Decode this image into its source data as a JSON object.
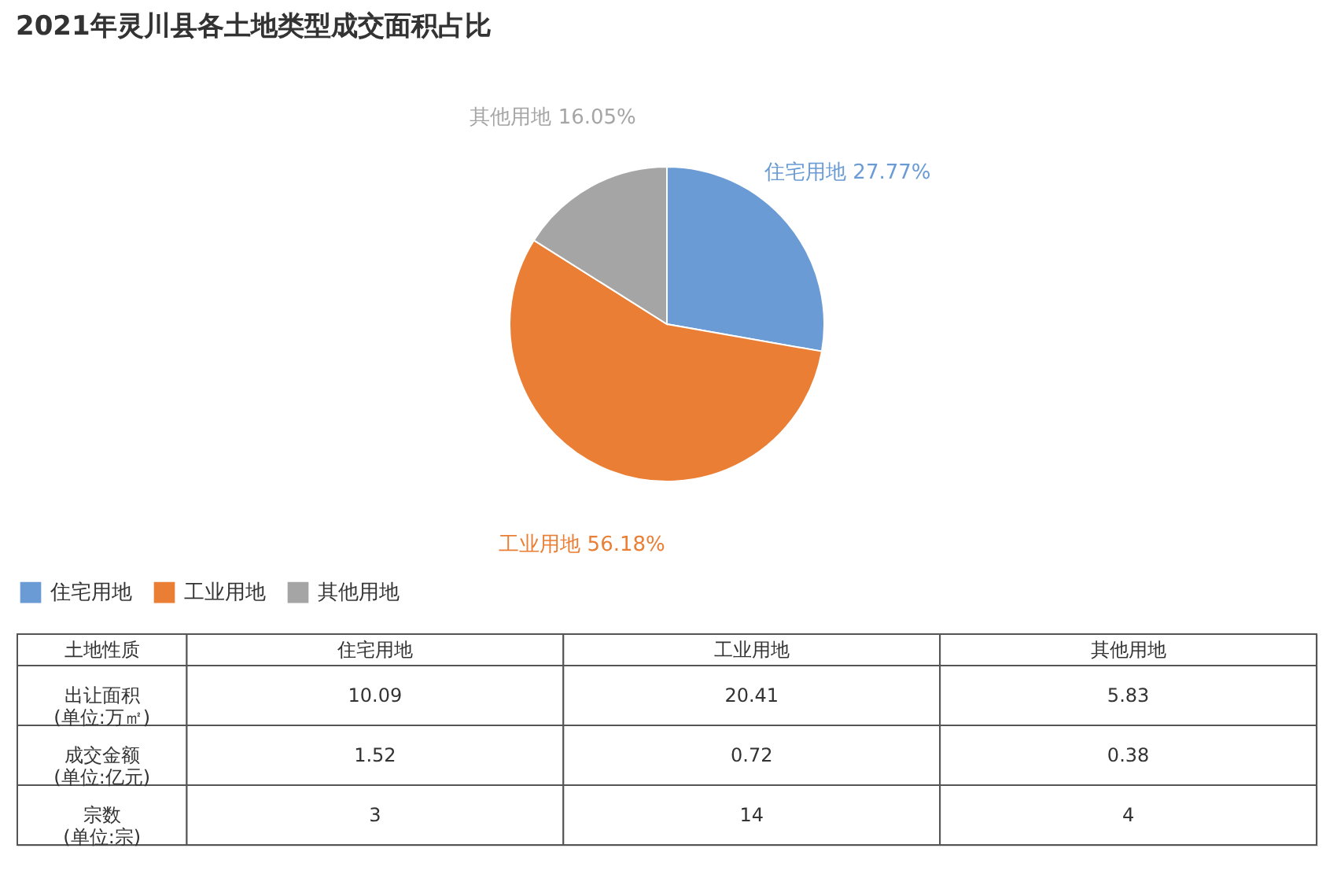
{
  "chart_data": [
    {
      "type": "pie",
      "title": "2021年灵川县各土地类型成交面积占比",
      "categories": [
        "住宅用地",
        "工业用地",
        "其他用地"
      ],
      "values": [
        27.77,
        56.18,
        16.05
      ],
      "value_labels": [
        "27.77%",
        "56.18%",
        "16.05%"
      ],
      "colors": [
        "#6a9bd4",
        "#ea7e35",
        "#a5a5a5"
      ],
      "legend": "bottom left"
    },
    {
      "type": "other",
      "ylabel": "土地性质",
      "categories": [
        "住宅用地",
        "工业用地",
        "其他用地"
      ],
      "y_categories": [
        "出让面积\n(单位:万㎡)",
        "成交金额\n(单位:亿元)",
        "宗数\n(单位:宗)"
      ],
      "cell_labels": [
        [
          "10.09",
          "20.41",
          "5.83"
        ],
        [
          "1.52",
          "0.72",
          "0.38"
        ],
        [
          "3",
          "14",
          "4"
        ]
      ]
    }
  ]
}
